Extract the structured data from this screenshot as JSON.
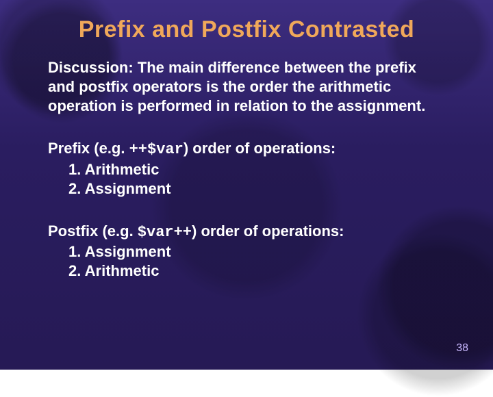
{
  "colors": {
    "background_top": "#3d2d80",
    "background_bottom": "#261a55",
    "gear_shadow": "rgba(0,0,0,0.2)",
    "title_color": "#f0a85a",
    "body_color": "#ffffff",
    "page_number_color": "#c9b8ff"
  },
  "typography": {
    "title_font": "Arial Narrow / Impact, condensed bold",
    "title_size_pt": 26,
    "body_font": "Arial, bold",
    "body_size_pt": 17,
    "code_font": "Courier New, bold"
  },
  "title": "Prefix and Postfix Contrasted",
  "discussion": "Discussion: The main difference between the prefix and postfix operators is the order the arithmetic operation is performed in relation to the assignment.",
  "prefix": {
    "heading_before": "Prefix (e.g. ",
    "code": "++$var",
    "heading_after": ") order of operations:",
    "item1": "1. Arithmetic",
    "item2": "2. Assignment"
  },
  "postfix": {
    "heading_before": "Postfix (e.g. ",
    "code": "$var++",
    "heading_after": ") order of operations:",
    "item1": "1. Assignment",
    "item2": "2. Arithmetic"
  },
  "page_number": "38"
}
